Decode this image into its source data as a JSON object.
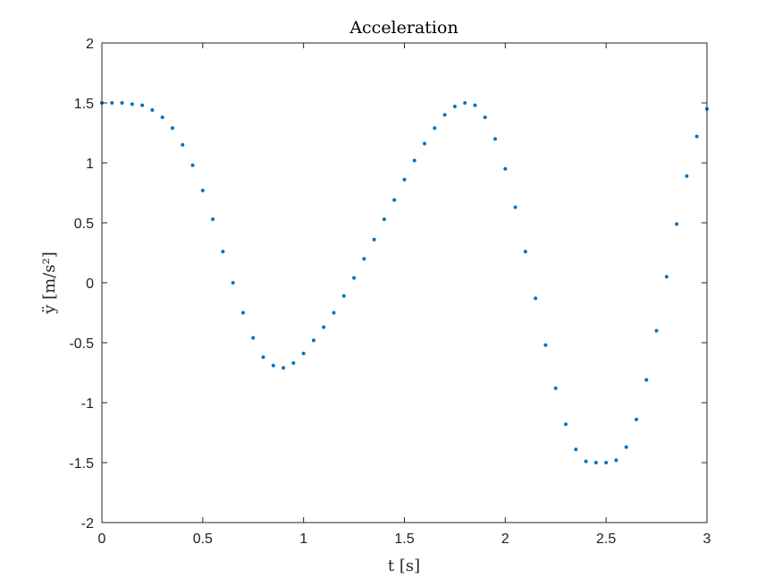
{
  "chart_data": {
    "type": "scatter",
    "title": "Acceleration",
    "xlabel": "t [s]",
    "ylabel": "ÿ [m/s²]",
    "xlim": [
      0,
      3
    ],
    "ylim": [
      -2,
      2
    ],
    "x_ticks": [
      0,
      0.5,
      1,
      1.5,
      2,
      2.5,
      3
    ],
    "x_tick_labels": [
      "0",
      "0.5",
      "1",
      "1.5",
      "2",
      "2.5",
      "3"
    ],
    "y_ticks": [
      -2,
      -1.5,
      -1,
      -0.5,
      0,
      0.5,
      1,
      1.5,
      2
    ],
    "y_tick_labels": [
      "-2",
      "-1.5",
      "-1",
      "-0.5",
      "0",
      "0.5",
      "1",
      "1.5",
      "2"
    ],
    "grid": false,
    "marker_color": "#0072BD",
    "series": [
      {
        "x": [
          0.0,
          0.05,
          0.1,
          0.15,
          0.2,
          0.25,
          0.3,
          0.35,
          0.4,
          0.45,
          0.5,
          0.55,
          0.6,
          0.65,
          0.7,
          0.75,
          0.8,
          0.85,
          0.9,
          0.95,
          1.0,
          1.05,
          1.1,
          1.15,
          1.2,
          1.25,
          1.3,
          1.35,
          1.4,
          1.45,
          1.5,
          1.55,
          1.6,
          1.65,
          1.7,
          1.75,
          1.8,
          1.85,
          1.9,
          1.95,
          2.0,
          2.05,
          2.1,
          2.15,
          2.2,
          2.25,
          2.3,
          2.35,
          2.4,
          2.45,
          2.5,
          2.55,
          2.6,
          2.65,
          2.7,
          2.75,
          2.8,
          2.85,
          2.9,
          2.95,
          3.0
        ],
        "y": [
          1.5,
          1.5,
          1.5,
          1.49,
          1.48,
          1.44,
          1.38,
          1.29,
          1.15,
          0.98,
          0.77,
          0.53,
          0.26,
          0.0,
          -0.25,
          -0.46,
          -0.62,
          -0.69,
          -0.71,
          -0.67,
          -0.59,
          -0.48,
          -0.37,
          -0.25,
          -0.11,
          0.04,
          0.2,
          0.36,
          0.53,
          0.69,
          0.86,
          1.02,
          1.16,
          1.29,
          1.4,
          1.47,
          1.5,
          1.48,
          1.38,
          1.2,
          0.95,
          0.63,
          0.26,
          -0.13,
          -0.52,
          -0.88,
          -1.18,
          -1.39,
          -1.49,
          -1.5,
          -1.5,
          -1.48,
          -1.37,
          -1.14,
          -0.81,
          -0.4,
          0.05,
          0.49,
          0.89,
          1.22,
          1.45
        ]
      }
    ]
  }
}
